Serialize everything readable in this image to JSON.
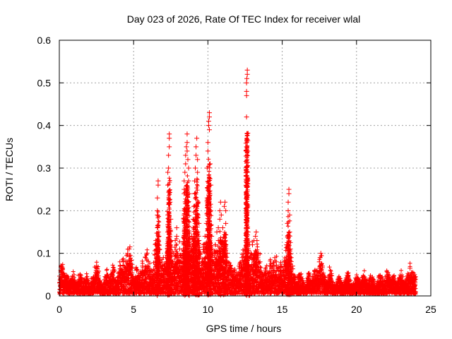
{
  "chart_data": {
    "type": "scatter",
    "title": "Day 023 of 2026, Rate Of TEC Index for receiver wlal",
    "xlabel": "GPS time / hours",
    "ylabel": "ROTI / TECUs",
    "xlim": [
      0,
      25
    ],
    "ylim": [
      0,
      0.6
    ],
    "xticks": [
      0,
      5,
      10,
      15,
      20,
      25
    ],
    "yticks": [
      0,
      0.1,
      0.2,
      0.3,
      0.4,
      0.5,
      0.6
    ],
    "xtick_labels": [
      "0",
      "5",
      "10",
      "15",
      "20",
      "25"
    ],
    "ytick_labels": [
      "0",
      "0.1",
      "0.2",
      "0.3",
      "0.4",
      "0.5",
      "0.6"
    ],
    "grid": true,
    "marker": "+",
    "marker_color": "#ff0000",
    "series": [
      {
        "name": "ROTI",
        "baseline_range_hours": [
          0,
          24
        ],
        "points": [
          [
            0.1,
            0.06
          ],
          [
            0.15,
            0.07
          ],
          [
            0.2,
            0.065
          ],
          [
            0.5,
            0.04
          ],
          [
            0.9,
            0.045
          ],
          [
            1.4,
            0.05
          ],
          [
            1.8,
            0.04
          ],
          [
            2.3,
            0.045
          ],
          [
            2.5,
            0.07
          ],
          [
            2.55,
            0.065
          ],
          [
            3.2,
            0.05
          ],
          [
            3.6,
            0.06
          ],
          [
            4.1,
            0.07
          ],
          [
            4.3,
            0.08
          ],
          [
            4.6,
            0.1
          ],
          [
            4.7,
            0.11
          ],
          [
            4.75,
            0.115
          ],
          [
            5.2,
            0.06
          ],
          [
            5.6,
            0.07
          ],
          [
            5.8,
            0.09
          ],
          [
            5.9,
            0.1
          ],
          [
            6.1,
            0.06
          ],
          [
            6.5,
            0.13
          ],
          [
            6.55,
            0.11
          ],
          [
            6.6,
            0.16
          ],
          [
            6.6,
            0.19
          ],
          [
            6.6,
            0.2
          ],
          [
            6.6,
            0.23
          ],
          [
            6.65,
            0.26
          ],
          [
            6.65,
            0.27
          ],
          [
            6.7,
            0.14
          ],
          [
            6.7,
            0.12
          ],
          [
            6.9,
            0.07
          ],
          [
            7.0,
            0.09
          ],
          [
            7.2,
            0.08
          ],
          [
            7.3,
            0.15
          ],
          [
            7.3,
            0.19
          ],
          [
            7.3,
            0.26
          ],
          [
            7.3,
            0.29
          ],
          [
            7.35,
            0.3
          ],
          [
            7.35,
            0.33
          ],
          [
            7.4,
            0.35
          ],
          [
            7.4,
            0.37
          ],
          [
            7.4,
            0.38
          ],
          [
            7.45,
            0.22
          ],
          [
            7.5,
            0.18
          ],
          [
            7.5,
            0.13
          ],
          [
            7.6,
            0.07
          ],
          [
            7.8,
            0.13
          ],
          [
            7.9,
            0.16
          ],
          [
            7.9,
            0.14
          ],
          [
            8.0,
            0.09
          ],
          [
            8.1,
            0.11
          ],
          [
            8.2,
            0.08
          ],
          [
            8.3,
            0.07
          ],
          [
            8.3,
            0.09
          ],
          [
            8.35,
            0.1
          ],
          [
            8.4,
            0.24
          ],
          [
            8.4,
            0.25
          ],
          [
            8.4,
            0.27
          ],
          [
            8.45,
            0.29
          ],
          [
            8.5,
            0.31
          ],
          [
            8.5,
            0.33
          ],
          [
            8.55,
            0.35
          ],
          [
            8.6,
            0.36
          ],
          [
            8.6,
            0.38
          ],
          [
            8.6,
            0.34
          ],
          [
            8.65,
            0.32
          ],
          [
            8.7,
            0.3
          ],
          [
            8.7,
            0.27
          ],
          [
            8.75,
            0.24
          ],
          [
            8.4,
            0.2
          ],
          [
            8.45,
            0.18
          ],
          [
            8.5,
            0.16
          ],
          [
            8.5,
            0.14
          ],
          [
            8.55,
            0.12
          ],
          [
            8.6,
            0.1
          ],
          [
            8.8,
            0.09
          ],
          [
            8.9,
            0.11
          ],
          [
            8.9,
            0.14
          ],
          [
            9.0,
            0.16
          ],
          [
            9.0,
            0.18
          ],
          [
            9.05,
            0.21
          ],
          [
            9.1,
            0.24
          ],
          [
            9.1,
            0.27
          ],
          [
            9.15,
            0.3
          ],
          [
            9.2,
            0.33
          ],
          [
            9.2,
            0.35
          ],
          [
            9.25,
            0.37
          ],
          [
            9.3,
            0.32
          ],
          [
            9.3,
            0.29
          ],
          [
            9.35,
            0.22
          ],
          [
            9.4,
            0.17
          ],
          [
            9.4,
            0.13
          ],
          [
            9.5,
            0.1
          ],
          [
            9.6,
            0.08
          ],
          [
            9.7,
            0.12
          ],
          [
            9.8,
            0.14
          ],
          [
            9.9,
            0.17
          ],
          [
            9.95,
            0.23
          ],
          [
            9.95,
            0.3
          ],
          [
            10.0,
            0.34
          ],
          [
            10.0,
            0.36
          ],
          [
            10.05,
            0.4
          ],
          [
            10.05,
            0.41
          ],
          [
            10.1,
            0.42
          ],
          [
            10.1,
            0.43
          ],
          [
            10.1,
            0.39
          ],
          [
            10.15,
            0.31
          ],
          [
            10.2,
            0.26
          ],
          [
            10.2,
            0.2
          ],
          [
            10.25,
            0.14
          ],
          [
            10.3,
            0.1
          ],
          [
            10.4,
            0.08
          ],
          [
            10.5,
            0.12
          ],
          [
            10.6,
            0.15
          ],
          [
            10.7,
            0.16
          ],
          [
            10.7,
            0.13
          ],
          [
            10.8,
            0.18
          ],
          [
            10.8,
            0.2
          ],
          [
            10.85,
            0.22
          ],
          [
            10.9,
            0.19
          ],
          [
            11.0,
            0.16
          ],
          [
            11.0,
            0.13
          ],
          [
            11.1,
            0.11
          ],
          [
            11.1,
            0.21
          ],
          [
            11.15,
            0.22
          ],
          [
            11.2,
            0.2
          ],
          [
            11.2,
            0.17
          ],
          [
            11.3,
            0.1
          ],
          [
            11.3,
            0.08
          ],
          [
            11.5,
            0.07
          ],
          [
            11.8,
            0.06
          ],
          [
            12.1,
            0.07
          ],
          [
            12.3,
            0.09
          ],
          [
            12.4,
            0.1
          ],
          [
            12.5,
            0.11
          ],
          [
            12.55,
            0.13
          ],
          [
            12.6,
            0.16
          ],
          [
            12.6,
            0.24
          ],
          [
            12.65,
            0.29
          ],
          [
            12.6,
            0.35
          ],
          [
            12.6,
            0.42
          ],
          [
            12.6,
            0.47
          ],
          [
            12.6,
            0.48
          ],
          [
            12.6,
            0.5
          ],
          [
            12.62,
            0.51
          ],
          [
            12.65,
            0.52
          ],
          [
            12.65,
            0.53
          ],
          [
            12.7,
            0.15
          ],
          [
            12.8,
            0.12
          ],
          [
            12.9,
            0.1
          ],
          [
            13.0,
            0.12
          ],
          [
            13.1,
            0.13
          ],
          [
            13.2,
            0.14
          ],
          [
            13.25,
            0.15
          ],
          [
            13.3,
            0.13
          ],
          [
            13.4,
            0.1
          ],
          [
            13.5,
            0.08
          ],
          [
            13.9,
            0.06
          ],
          [
            14.2,
            0.07
          ],
          [
            14.5,
            0.09
          ],
          [
            14.6,
            0.08
          ],
          [
            14.9,
            0.07
          ],
          [
            15.2,
            0.08
          ],
          [
            15.3,
            0.12
          ],
          [
            15.35,
            0.17
          ],
          [
            15.4,
            0.2
          ],
          [
            15.4,
            0.22
          ],
          [
            15.45,
            0.24
          ],
          [
            15.45,
            0.25
          ],
          [
            15.5,
            0.19
          ],
          [
            15.5,
            0.15
          ],
          [
            15.55,
            0.11
          ],
          [
            15.6,
            0.09
          ],
          [
            15.7,
            0.07
          ],
          [
            16.2,
            0.05
          ],
          [
            16.8,
            0.045
          ],
          [
            17.2,
            0.06
          ],
          [
            17.5,
            0.08
          ],
          [
            17.55,
            0.09
          ],
          [
            17.6,
            0.1
          ],
          [
            17.7,
            0.07
          ],
          [
            18.2,
            0.05
          ],
          [
            18.8,
            0.04
          ],
          [
            19.4,
            0.045
          ],
          [
            20.0,
            0.04
          ],
          [
            20.5,
            0.045
          ],
          [
            21.0,
            0.04
          ],
          [
            21.6,
            0.045
          ],
          [
            22.1,
            0.055
          ],
          [
            22.5,
            0.04
          ],
          [
            23.0,
            0.045
          ],
          [
            23.5,
            0.05
          ],
          [
            23.6,
            0.065
          ],
          [
            23.7,
            0.055
          ],
          [
            23.9,
            0.05
          ]
        ]
      }
    ]
  }
}
